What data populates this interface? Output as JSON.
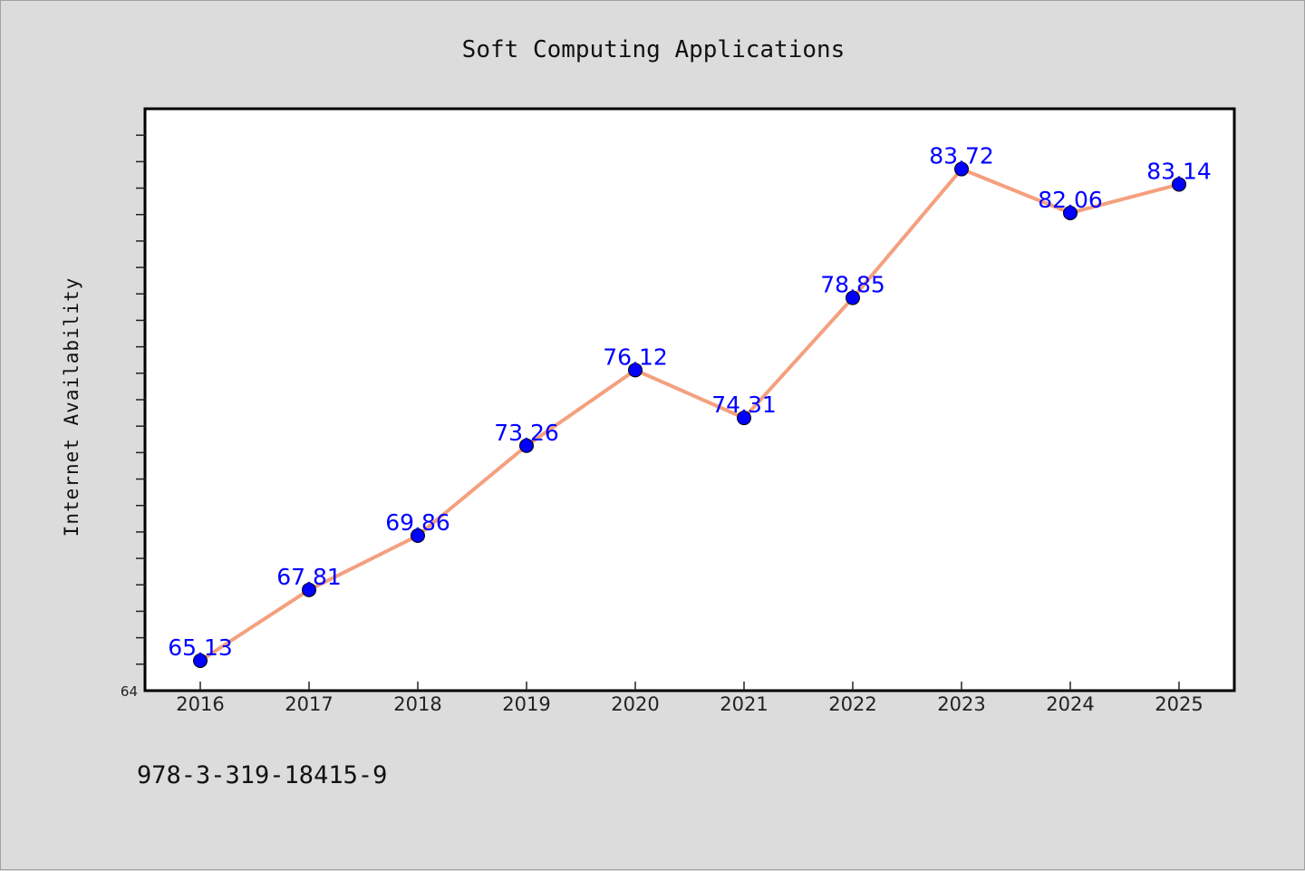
{
  "chart_data": {
    "type": "line",
    "title": "Soft Computing Applications",
    "xlabel": "",
    "ylabel": "Internet Availability",
    "categories": [
      "2016",
      "2017",
      "2018",
      "2019",
      "2020",
      "2021",
      "2022",
      "2023",
      "2024",
      "2025"
    ],
    "series": [
      {
        "values": [
          65.13,
          67.81,
          69.86,
          73.26,
          76.12,
          74.31,
          78.85,
          83.72,
          82.06,
          83.14
        ]
      }
    ],
    "data_labels": [
      "65.13",
      "67.81",
      "69.86",
      "73.26",
      "76.12",
      "74.31",
      "78.85",
      "83.72",
      "82.06",
      "83.14"
    ],
    "ylim": [
      64,
      86
    ],
    "y_tick_labels": [
      "64"
    ],
    "grid": false,
    "legend": "none",
    "colors": {
      "line": "#f4a07e",
      "marker": "#0000ff",
      "data_label": "#0000ff",
      "plot_background": "#ffffff",
      "figure_background": "#dcdcdc"
    }
  },
  "footer": {
    "isbn": "978-3-319-18415-9"
  }
}
